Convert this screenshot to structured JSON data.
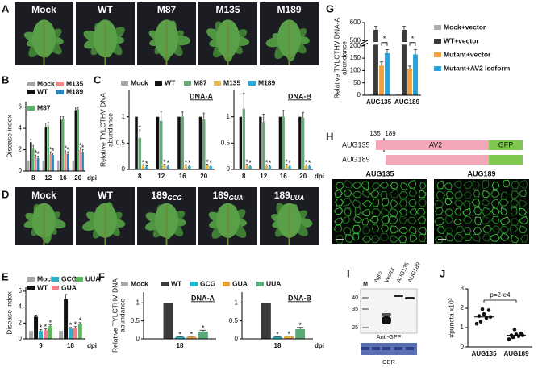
{
  "figure": {
    "panel_labels": [
      "A",
      "B",
      "C",
      "D",
      "E",
      "F",
      "G",
      "H",
      "I",
      "J"
    ],
    "photos_a": [
      "Mock",
      "WT",
      "M87",
      "M135",
      "M189"
    ],
    "photos_d": [
      {
        "text": "Mock"
      },
      {
        "text": "WT"
      },
      {
        "text": "189",
        "subscript": "GCG"
      },
      {
        "text": "189",
        "subscript": "GUA"
      },
      {
        "text": "189",
        "subscript": "UUA"
      }
    ],
    "construct": {
      "positions": [
        "135",
        "189"
      ],
      "rows": [
        "AUG135",
        "AUG189"
      ],
      "domains": [
        "AV2",
        "GFP"
      ]
    },
    "micrographs": [
      "AUG135",
      "AUG189"
    ],
    "blot": {
      "marker": "M",
      "lanes": [
        "Agro",
        "Vector",
        "AUG135",
        "AUG189"
      ],
      "sizes": [
        "40",
        "35",
        "25"
      ],
      "antibody": "Anti-GFP",
      "loading": "CBR"
    }
  },
  "chart_data": [
    {
      "type": "bar",
      "y_label": [
        "Disease index"
      ],
      "categories": [
        "8",
        "12",
        "16",
        "20"
      ],
      "x_unit": "dpi",
      "ylim": [
        0,
        6.5
      ],
      "yticks": [
        0,
        2,
        4,
        6
      ],
      "series": [
        {
          "name": "Mock",
          "color": "#a6a6a6",
          "values": [
            1,
            1,
            1,
            1
          ]
        },
        {
          "name": "WT",
          "color": "#111111",
          "values": [
            2.7,
            4.1,
            4.8,
            5.7
          ],
          "errors": [
            0.3,
            0.4,
            0.3,
            0.2
          ]
        },
        {
          "name": "M87",
          "color": "#5bb36b",
          "values": [
            2.1,
            4.2,
            4.9,
            5.8
          ],
          "errors": [
            0.3,
            0.35,
            0.2,
            0.2
          ]
        },
        {
          "name": "M135",
          "color": "#f08a8a",
          "values": [
            1.3,
            1.6,
            1.7,
            2.0
          ],
          "errors": [
            0.2,
            0.2,
            0.2,
            0.2
          ],
          "significance": [
            "*",
            "*",
            "*",
            "*"
          ]
        },
        {
          "name": "M189",
          "color": "#2e86c1",
          "values": [
            1.2,
            1.5,
            1.6,
            1.8
          ],
          "errors": [
            0.2,
            0.2,
            0.2,
            0.2
          ],
          "significance": [
            "*",
            "*",
            "*",
            "*"
          ]
        }
      ]
    },
    {
      "type": "bar",
      "y_label": [
        "Relative TYLCTHV DNA",
        "abundance"
      ],
      "categories": [
        "8",
        "12",
        "16",
        "20"
      ],
      "x_unit": "dpi",
      "ylim": [
        0,
        1.5
      ],
      "yticks": [
        0,
        0.5,
        1
      ],
      "series": [
        {
          "name": "Mock",
          "color": "#a6a6a6"
        },
        {
          "name": "WT",
          "color": "#111111"
        },
        {
          "name": "M87",
          "color": "#6aa67a"
        },
        {
          "name": "M135",
          "color": "#e8b84a"
        },
        {
          "name": "M189",
          "color": "#2aa8d8"
        }
      ],
      "panels": [
        {
          "title": "DNA-A",
          "series": [
            {
              "values": [
                0,
                0,
                0,
                0
              ]
            },
            {
              "values": [
                1,
                1,
                1,
                1
              ]
            },
            {
              "values": [
                0.6,
                0.92,
                1.0,
                0.95
              ],
              "errors": [
                0.15,
                0.18,
                0.1,
                0.12
              ],
              "significance": [
                "*",
                null,
                null,
                null
              ]
            },
            {
              "values": [
                0.07,
                0.08,
                0.07,
                0.08
              ],
              "errors": [
                0.02,
                0.02,
                0.02,
                0.02
              ],
              "significance": [
                "*",
                "*",
                "*",
                "*"
              ]
            },
            {
              "values": [
                0.05,
                0.06,
                0.06,
                0.06
              ],
              "errors": [
                0.02,
                0.02,
                0.02,
                0.02
              ],
              "significance": [
                "*",
                "*",
                "*",
                "*"
              ]
            }
          ]
        },
        {
          "title": "DNA-B",
          "series": [
            {
              "values": [
                0,
                0,
                0,
                0
              ]
            },
            {
              "values": [
                1,
                1,
                1,
                1
              ]
            },
            {
              "values": [
                1.15,
                0.9,
                1.0,
                0.98
              ],
              "errors": [
                0.3,
                0.15,
                0.12,
                0.1
              ]
            },
            {
              "values": [
                0.08,
                0.07,
                0.08,
                0.07
              ],
              "errors": [
                0.02,
                0.02,
                0.02,
                0.02
              ],
              "significance": [
                "*",
                "*",
                "*",
                "*"
              ]
            },
            {
              "values": [
                0.06,
                0.06,
                0.06,
                0.06
              ],
              "errors": [
                0.02,
                0.02,
                0.02,
                0.02
              ],
              "significance": [
                "*",
                "*",
                "*",
                "*"
              ]
            }
          ]
        }
      ]
    },
    {
      "type": "bar",
      "y_label": [
        "Disease index"
      ],
      "categories": [
        "9",
        "18"
      ],
      "x_unit": "dpi",
      "ylim": [
        0,
        6.5
      ],
      "yticks": [
        0,
        2,
        4,
        6
      ],
      "series": [
        {
          "name": "Mock",
          "color": "#a6a6a6",
          "values": [
            1,
            1
          ]
        },
        {
          "name": "WT",
          "color": "#111111",
          "values": [
            2.8,
            5.0
          ],
          "errors": [
            0.2,
            0.6
          ]
        },
        {
          "name": "GCG",
          "color": "#2bb0c9",
          "values": [
            1.0,
            1.3
          ],
          "errors": [
            0.15,
            0.15
          ],
          "significance": [
            "*",
            "*"
          ]
        },
        {
          "name": "GUA",
          "color": "#f07f8e",
          "values": [
            1.1,
            1.4
          ],
          "errors": [
            0.15,
            0.15
          ],
          "significance": [
            "*",
            "*"
          ]
        },
        {
          "name": "UUA",
          "color": "#5cb85c",
          "values": [
            1.6,
            1.9
          ],
          "errors": [
            0.15,
            0.15
          ],
          "significance": [
            "*",
            "*"
          ]
        }
      ]
    },
    {
      "type": "bar",
      "y_label": [
        "Relative TYLCTHV DNA",
        "abundance"
      ],
      "categories": [
        "18"
      ],
      "x_unit": "dpi",
      "ylim": [
        0,
        1.3
      ],
      "yticks": [
        0,
        0.5,
        1
      ],
      "series": [
        {
          "name": "Mock",
          "color": "#a6a6a6"
        },
        {
          "name": "WT",
          "color": "#3a3a3a"
        },
        {
          "name": "GCG",
          "color": "#1fb5c9"
        },
        {
          "name": "GUA",
          "color": "#e8a040"
        },
        {
          "name": "UUA",
          "color": "#5aaa78"
        }
      ],
      "panels": [
        {
          "title": "DNA-A",
          "series": [
            {
              "values": [
                0
              ]
            },
            {
              "values": [
                1
              ]
            },
            {
              "values": [
                0.05
              ],
              "errors": [
                0.01
              ],
              "significance": [
                "*"
              ]
            },
            {
              "values": [
                0.06
              ],
              "errors": [
                0.01
              ],
              "significance": [
                "*"
              ]
            },
            {
              "values": [
                0.2
              ],
              "errors": [
                0.04
              ],
              "significance": [
                "*"
              ]
            }
          ]
        },
        {
          "title": "DNA-B",
          "series": [
            {
              "values": [
                0
              ]
            },
            {
              "values": [
                1
              ]
            },
            {
              "values": [
                0.05
              ],
              "errors": [
                0.01
              ],
              "significance": [
                "*"
              ]
            },
            {
              "values": [
                0.07
              ],
              "errors": [
                0.01
              ],
              "significance": [
                "*"
              ]
            },
            {
              "values": [
                0.27
              ],
              "errors": [
                0.05
              ],
              "significance": [
                "*"
              ]
            }
          ]
        }
      ]
    },
    {
      "type": "bar",
      "y_label": [
        "Relative TYLCTHV DNA-A",
        "abundance"
      ],
      "categories": [
        "AUG135",
        "AUG189"
      ],
      "ylim": [
        0,
        600
      ],
      "ybreak": [
        200,
        500
      ],
      "yticks": [
        0,
        50,
        100,
        150,
        200,
        500,
        600
      ],
      "series": [
        {
          "name": "Mock+vector",
          "color": "#b0b0b0",
          "values": [
            5,
            5
          ]
        },
        {
          "name": "WT+vector",
          "color": "#3a3a3a",
          "values": [
            560,
            560
          ],
          "errors": [
            20,
            20
          ]
        },
        {
          "name": "Mutant+vector",
          "color": "#f0a040",
          "values": [
            120,
            108
          ],
          "errors": [
            15,
            10
          ]
        },
        {
          "name": "Mutant+AV2 Isoform",
          "color": "#2aa0d8",
          "values": [
            170,
            165
          ],
          "errors": [
            15,
            20
          ]
        }
      ],
      "annotations": [
        "*",
        "*"
      ]
    },
    {
      "type": "strip",
      "y_label": [
        "#puncta x10³"
      ],
      "categories": [
        "AUG135",
        "AUG189"
      ],
      "ylim": [
        0,
        3
      ],
      "yticks": [
        0,
        1,
        2,
        3
      ],
      "color": "#111111",
      "values": [
        [
          1.2,
          1.3,
          1.5,
          1.55,
          1.6,
          1.7,
          1.9,
          1.95
        ],
        [
          0.4,
          0.5,
          0.55,
          0.6,
          0.6,
          0.65,
          0.7,
          0.9
        ]
      ],
      "medians": [
        1.55,
        0.6
      ],
      "annotation": "p=2-e4"
    }
  ]
}
